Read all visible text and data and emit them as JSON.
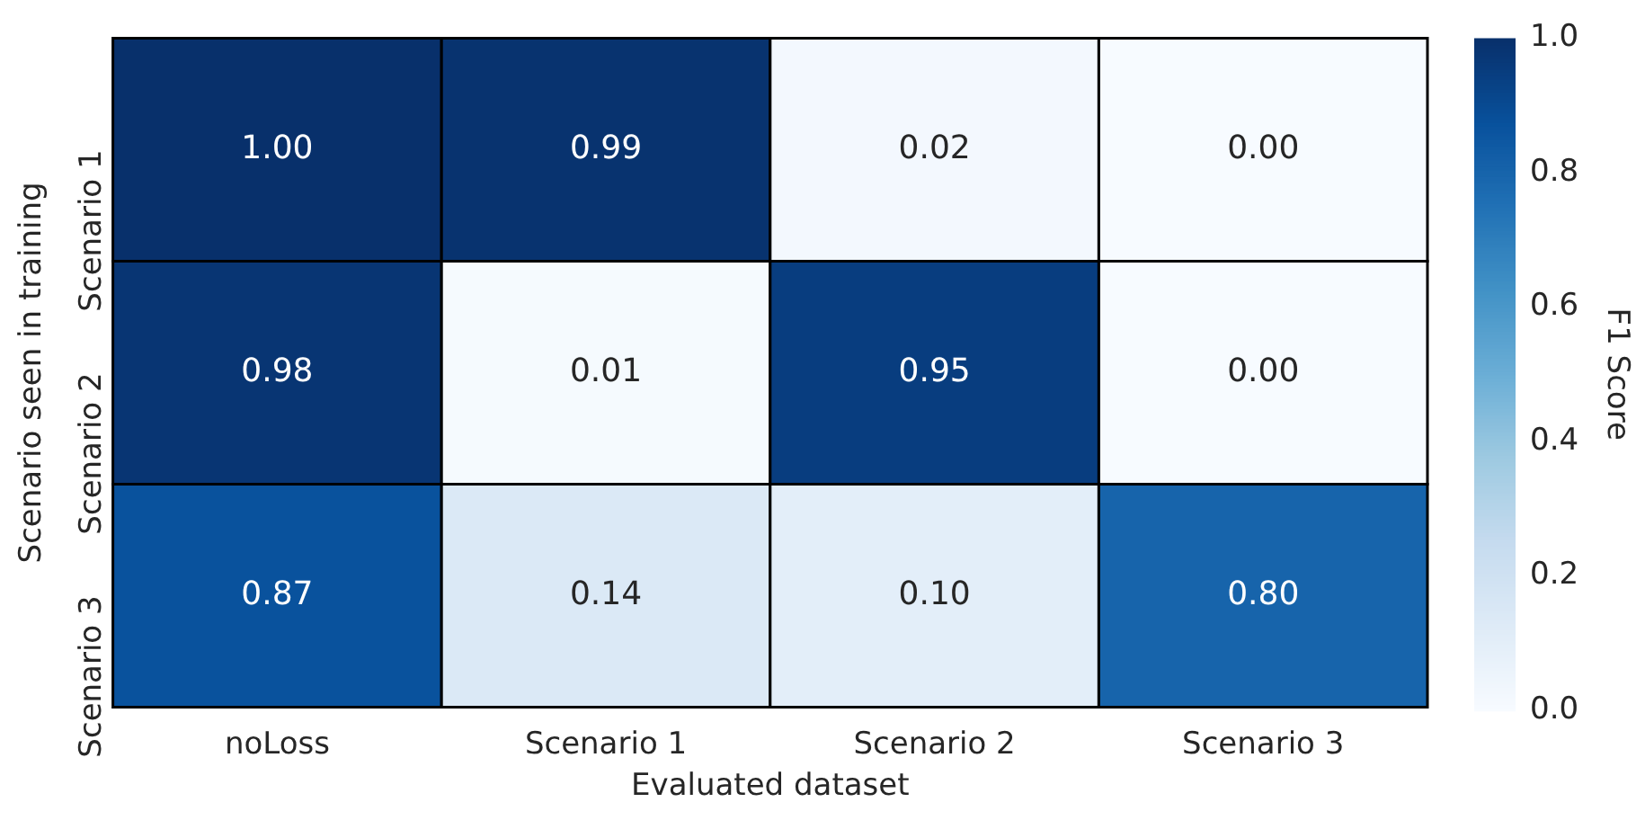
{
  "chart_data": {
    "type": "heatmap",
    "xlabel": "Evaluated dataset",
    "ylabel": "Scenario seen in training",
    "clabel": "F1 Score",
    "categories": [
      "noLoss",
      "Scenario 1",
      "Scenario 2",
      "Scenario 3"
    ],
    "y_categories": [
      "Scenario 1",
      "Scenario 2",
      "Scenario 3"
    ],
    "cells": [
      [
        1.0,
        0.99,
        0.02,
        0.0
      ],
      [
        0.98,
        0.01,
        0.95,
        0.0
      ],
      [
        0.87,
        0.14,
        0.1,
        0.8
      ]
    ],
    "cell_labels": [
      [
        "1.00",
        "0.99",
        "0.02",
        "0.00"
      ],
      [
        "0.98",
        "0.01",
        "0.95",
        "0.00"
      ],
      [
        "0.87",
        "0.14",
        "0.10",
        "0.80"
      ]
    ],
    "clim": [
      0,
      1
    ],
    "cticks": [
      {
        "value": 0,
        "label": "0.0"
      },
      {
        "value": 0.2,
        "label": "0.2"
      },
      {
        "value": 0.4,
        "label": "0.4"
      },
      {
        "value": 0.6,
        "label": "0.6"
      },
      {
        "value": 0.8,
        "label": "0.8"
      },
      {
        "value": 1,
        "label": "1.0"
      }
    ]
  }
}
